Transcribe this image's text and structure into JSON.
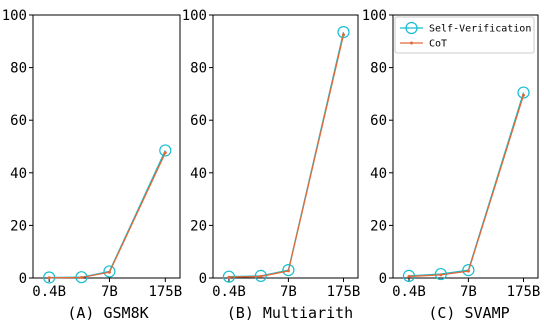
{
  "chart_data": [
    {
      "type": "line",
      "title": "(A) GSM8K",
      "x": [
        0,
        1,
        2,
        3
      ],
      "xticks": [
        "0.4B",
        "7B",
        "175B"
      ],
      "xtick_positions": [
        0,
        2,
        3
      ],
      "ylim": [
        0,
        100
      ],
      "yticks": [
        0,
        20,
        40,
        60,
        80,
        100
      ],
      "grid": false,
      "series": [
        {
          "name": "Self-Verification",
          "values": [
            0.2,
            0.3,
            2.5,
            48.5
          ],
          "color": "#17becf"
        },
        {
          "name": "CoT",
          "values": [
            0.1,
            0.2,
            2.2,
            47.6
          ],
          "color": "#e06a3a"
        }
      ]
    },
    {
      "type": "line",
      "title": "(B) Multiarith",
      "x": [
        0,
        1,
        2,
        3
      ],
      "xticks": [
        "0.4B",
        "7B",
        "175B"
      ],
      "xtick_positions": [
        0,
        2,
        3
      ],
      "ylim": [
        0,
        100
      ],
      "yticks": [
        0,
        20,
        40,
        60,
        80,
        100
      ],
      "grid": false,
      "series": [
        {
          "name": "Self-Verification",
          "values": [
            0.5,
            0.8,
            3.0,
            93.5
          ],
          "color": "#17becf"
        },
        {
          "name": "CoT",
          "values": [
            0.3,
            0.6,
            2.7,
            92.5
          ],
          "color": "#e06a3a"
        }
      ]
    },
    {
      "type": "line",
      "title": "(C) SVAMP",
      "x": [
        0,
        1,
        2,
        3
      ],
      "xticks": [
        "0.4B",
        "7B",
        "175B"
      ],
      "xtick_positions": [
        0,
        2,
        3
      ],
      "ylim": [
        0,
        100
      ],
      "yticks": [
        0,
        20,
        40,
        60,
        80,
        100
      ],
      "grid": false,
      "legend": "top-left",
      "series": [
        {
          "name": "Self-Verification",
          "values": [
            0.8,
            1.5,
            3.0,
            70.5
          ],
          "color": "#17becf"
        },
        {
          "name": "CoT",
          "values": [
            0.6,
            1.2,
            2.6,
            69.5
          ],
          "color": "#e06a3a"
        }
      ]
    }
  ]
}
